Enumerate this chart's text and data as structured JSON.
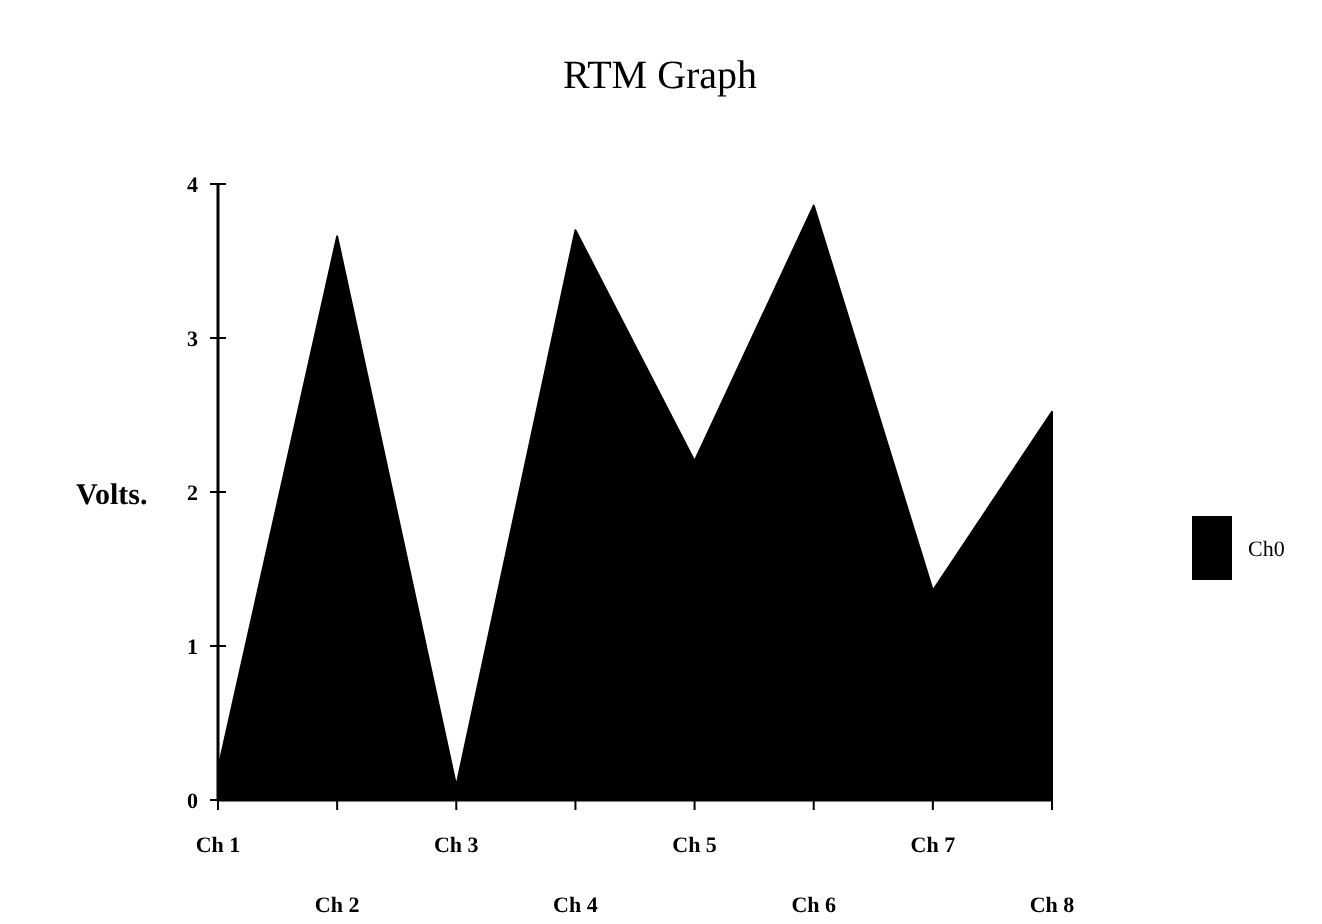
{
  "chart_data": {
    "type": "area",
    "title": "RTM Graph",
    "ylabel": "Volts.",
    "categories": [
      "Ch 1",
      "Ch 2",
      "Ch 3",
      "Ch 4",
      "Ch 5",
      "Ch 6",
      "Ch 7",
      "Ch 8"
    ],
    "series": [
      {
        "name": "Ch0",
        "color": "#000000",
        "values": [
          0.2,
          3.66,
          0.09,
          3.7,
          2.2,
          3.86,
          1.36,
          2.52
        ]
      }
    ],
    "ylim": [
      0,
      4
    ],
    "yticks": [
      0,
      1,
      2,
      3,
      4
    ],
    "legend": "right"
  }
}
